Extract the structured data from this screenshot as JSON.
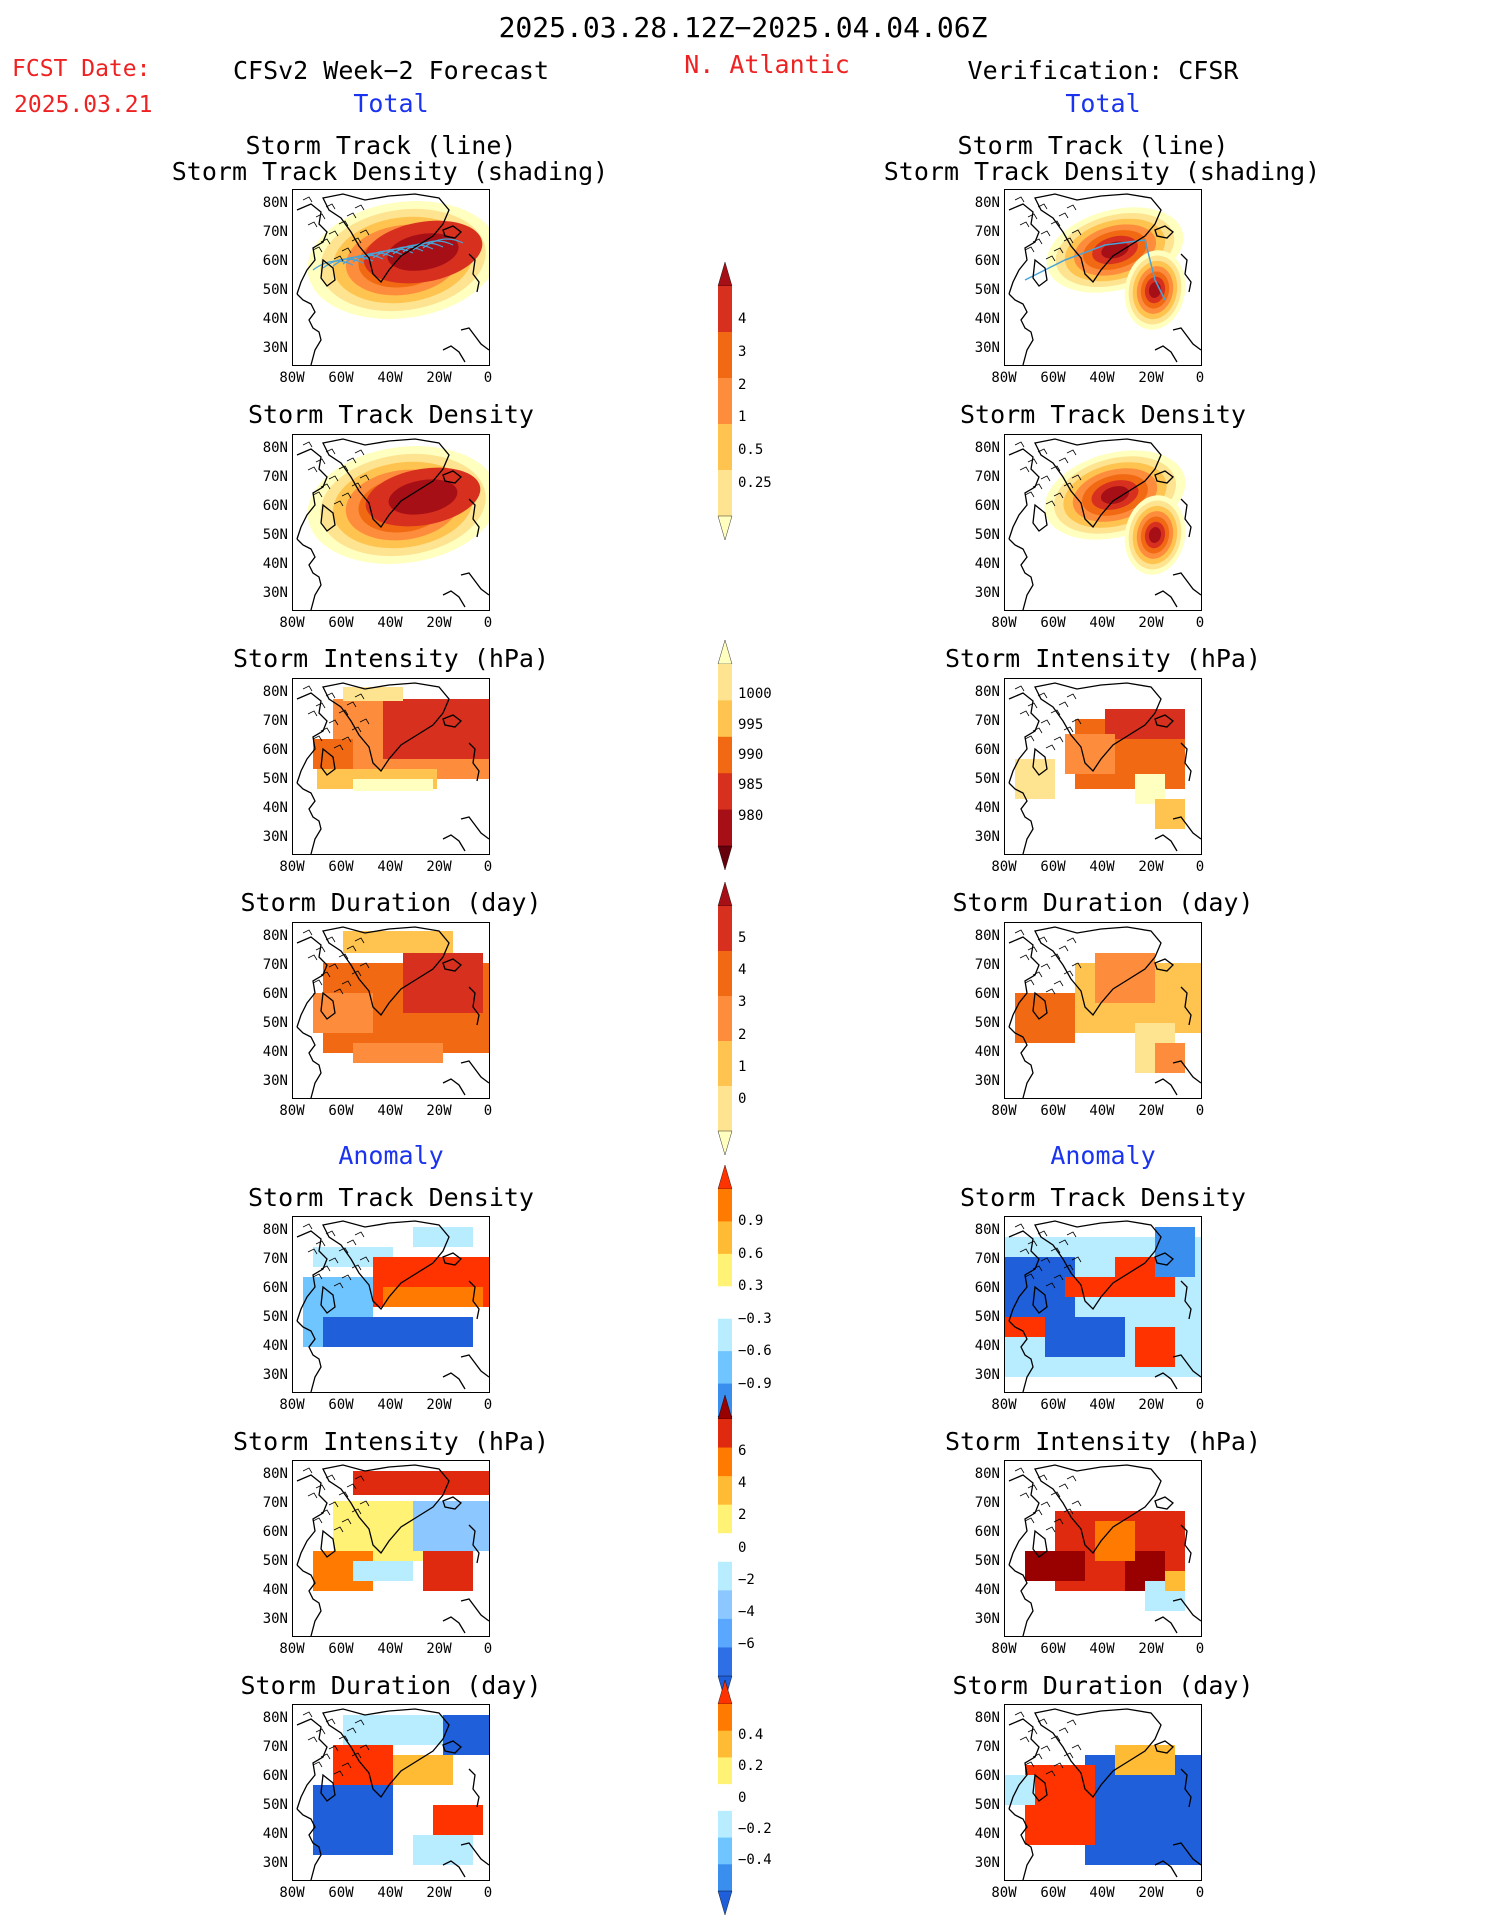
{
  "header": {
    "period": "2025.03.28.12Z−2025.04.04.06Z",
    "fcst_label": "FCST Date:",
    "fcst_date": "2025.03.21",
    "forecast_title": "CFSv2 Week−2 Forecast",
    "region": "N. Atlantic",
    "verification_title": "Verification: CFSR",
    "total_left": "Total",
    "total_right": "Total",
    "anomaly_left": "Anomaly",
    "anomaly_right": "Anomaly"
  },
  "panels": {
    "track_line": "Storm Track (line)",
    "track_density_shading": "Storm Track Density (shading)",
    "track_density": "Storm Track Density",
    "intensity": "Storm Intensity (hPa)",
    "duration": "Storm Duration (day)"
  },
  "axes": {
    "lat_labels": [
      "80N",
      "70N",
      "60N",
      "50N",
      "40N",
      "30N"
    ],
    "lon_labels": [
      "80W",
      "60W",
      "40W",
      "20W",
      "0"
    ]
  },
  "colorbars": [
    {
      "id": "density_total",
      "labels": [
        "4",
        "3",
        "2",
        "1",
        "0.5",
        "0.25"
      ],
      "colors": [
        "#a50f15",
        "#d7301f",
        "#f16913",
        "#fd8d3c",
        "#fec44f",
        "#fee391",
        "#ffffbf"
      ]
    },
    {
      "id": "intensity_total",
      "labels": [
        "1000",
        "995",
        "990",
        "985",
        "980"
      ],
      "colors": [
        "#ffffbf",
        "#fee391",
        "#fec44f",
        "#f16913",
        "#d7301f",
        "#a50f15",
        "#67000d"
      ]
    },
    {
      "id": "duration_total",
      "labels": [
        "5",
        "4",
        "3",
        "2",
        "1",
        "0"
      ],
      "colors": [
        "#a50f15",
        "#d7301f",
        "#f16913",
        "#fd8d3c",
        "#fec44f",
        "#fee391",
        "#ffffbf"
      ]
    },
    {
      "id": "density_anom",
      "labels": [
        "0.9",
        "0.6",
        "0.3",
        "−0.3",
        "−0.6",
        "−0.9"
      ],
      "colors": [
        "#ff3300",
        "#ff7a00",
        "#ffbb33",
        "#fff275",
        "#ffffff",
        "#b8ecff",
        "#6fc5ff",
        "#3a8fee",
        "#1f5fd9"
      ]
    },
    {
      "id": "intensity_anom",
      "labels": [
        "6",
        "4",
        "2",
        "0",
        "−2",
        "−4",
        "−6"
      ],
      "colors": [
        "#990000",
        "#e02a10",
        "#ff7a00",
        "#ffbb33",
        "#fff275",
        "#ffffff",
        "#b8ecff",
        "#8cc8ff",
        "#5aa7ff",
        "#2f6fe6",
        "#1f5fd9"
      ]
    },
    {
      "id": "duration_anom",
      "labels": [
        "0.4",
        "0.2",
        "0",
        "−0.2",
        "−0.4"
      ],
      "colors": [
        "#ff3300",
        "#ff7a00",
        "#ffbb33",
        "#fff275",
        "#ffffff",
        "#b8ecff",
        "#6fc5ff",
        "#3a8fee",
        "#1f5fd9"
      ]
    }
  ]
}
